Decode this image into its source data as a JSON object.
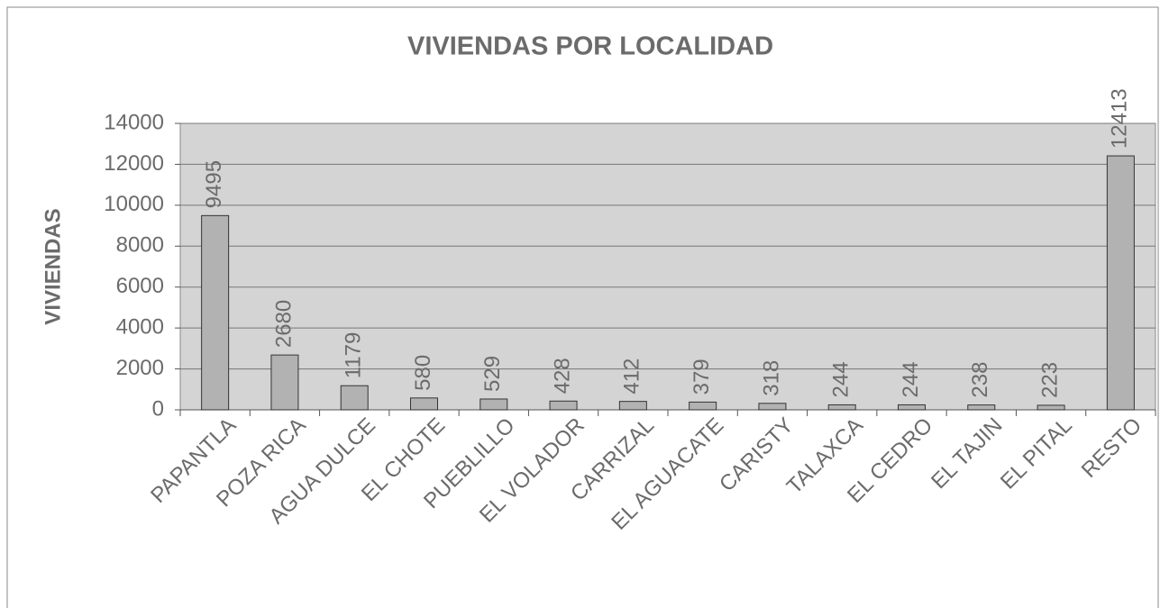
{
  "chart_data": {
    "type": "bar",
    "title": "VIVIENDAS POR LOCALIDAD",
    "y_label": "VIVIENDAS",
    "categories": [
      "PAPANTLA",
      "POZA RICA",
      "AGUA DULCE",
      "EL CHOTE",
      "PUEBLILLO",
      "EL VOLADOR",
      "CARRIZAL",
      "EL AGUACATE",
      "CARISTY",
      "TALAXCA",
      "EL CEDRO",
      "EL TAJIN",
      "EL PITAL",
      "RESTO"
    ],
    "values": [
      9495,
      2680,
      1179,
      580,
      529,
      428,
      412,
      379,
      318,
      244,
      244,
      238,
      223,
      12413
    ],
    "color": "#b2b2b2",
    "plot_background": "#d4d4d4",
    "ylim": [
      0,
      14000
    ],
    "yticks": [
      0,
      2000,
      4000,
      6000,
      8000,
      10000,
      12000,
      14000
    ],
    "grid": true
  }
}
